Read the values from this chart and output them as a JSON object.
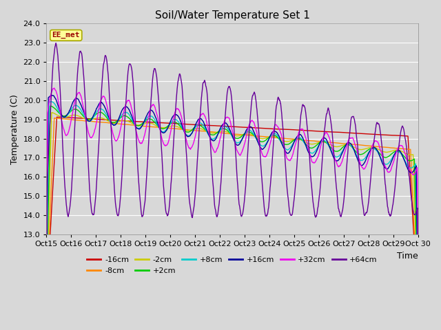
{
  "title": "Soil/Water Temperature Set 1",
  "xlabel": "Time",
  "ylabel": "Temperature (C)",
  "ylim": [
    13.0,
    24.0
  ],
  "yticks": [
    13.0,
    14.0,
    15.0,
    16.0,
    17.0,
    18.0,
    19.0,
    20.0,
    21.0,
    22.0,
    23.0,
    24.0
  ],
  "xtick_labels": [
    "Oct 15",
    "Oct 16",
    "Oct 17",
    "Oct 18",
    "Oct 19",
    "Oct 20",
    "Oct 21",
    "Oct 22",
    "Oct 23",
    "Oct 24",
    "Oct 25",
    "Oct 26",
    "Oct 27",
    "Oct 28",
    "Oct 29",
    "Oct 30"
  ],
  "background_color": "#d8d8d8",
  "plot_bg_color": "#d8d8d8",
  "watermark": "EE_met",
  "watermark_color": "#990000",
  "watermark_bg": "#ffff99",
  "num_points": 1440,
  "colors": {
    "-16cm": "#cc0000",
    "-8cm": "#ff8800",
    "-2cm": "#cccc00",
    "+2cm": "#00cc00",
    "+8cm": "#00cccc",
    "+16cm": "#000099",
    "+32cm": "#ee00ee",
    "+64cm": "#660099"
  },
  "legend_row1": [
    "-16cm",
    "-8cm",
    "-2cm",
    "+2cm",
    "+8cm",
    "+16cm"
  ],
  "legend_row2": [
    "+32cm",
    "+64cm"
  ]
}
